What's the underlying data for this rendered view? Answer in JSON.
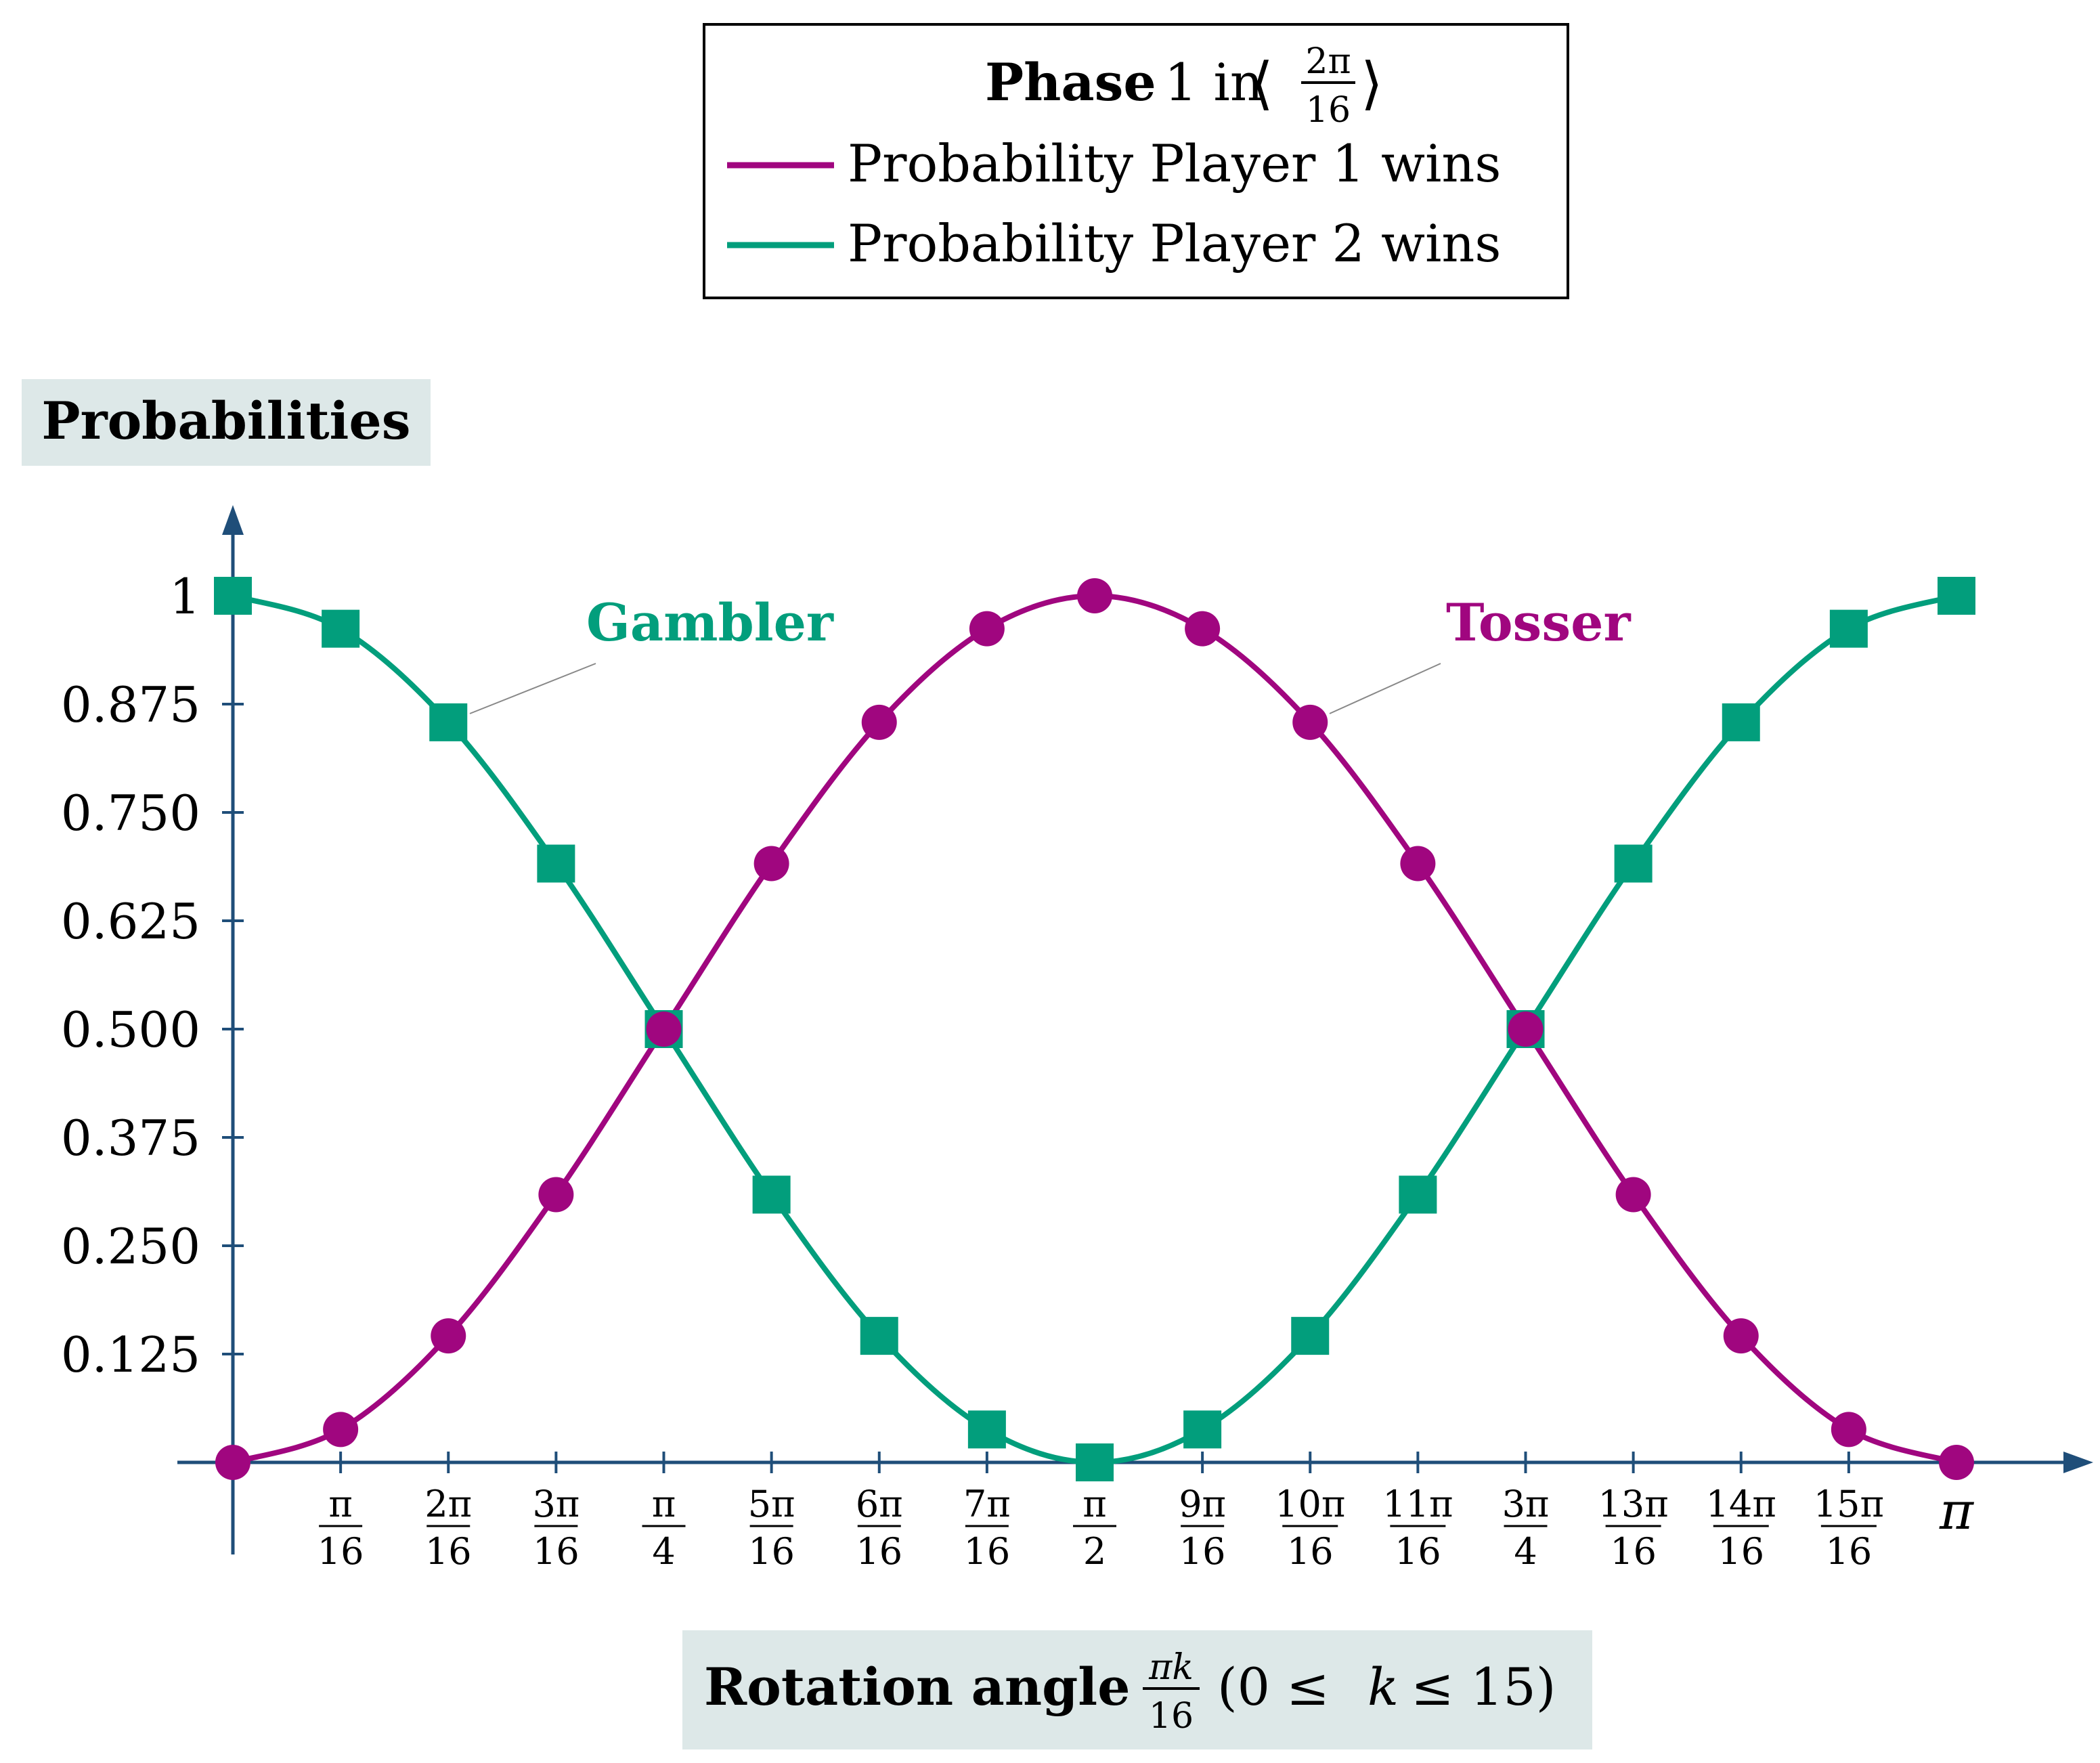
{
  "legend": {
    "title_bold": "Phase",
    "title_rest": "1 in",
    "title_frac_num": "2π",
    "title_frac_den": "16",
    "title_open": "⟨",
    "title_close": "⟩",
    "entries": [
      "Probability Player 1 wins",
      "Probability Player 2 wins"
    ]
  },
  "yaxis_label": "Probabilities",
  "xaxis_label": {
    "bold": "Rotation angle",
    "frac_num": "πk",
    "frac_den": "16",
    "range_open": "(0 ≤ ",
    "range_var": "k",
    "range_close": " ≤ 15)"
  },
  "annotations": {
    "gambler": "Gambler",
    "tosser": "Tosser"
  },
  "colors": {
    "series1": "#a0067f",
    "series2": "#029e7c",
    "axis": "#1f4e79",
    "label_bg": "#dde8e8"
  },
  "chart_data": {
    "type": "line",
    "x_ticks": [
      {
        "num": "π",
        "den": "16"
      },
      {
        "num": "2π",
        "den": "16"
      },
      {
        "num": "3π",
        "den": "16"
      },
      {
        "num": "π",
        "den": "4"
      },
      {
        "num": "5π",
        "den": "16"
      },
      {
        "num": "6π",
        "den": "16"
      },
      {
        "num": "7π",
        "den": "16"
      },
      {
        "num": "π",
        "den": "2"
      },
      {
        "num": "9π",
        "den": "16"
      },
      {
        "num": "10π",
        "den": "16"
      },
      {
        "num": "11π",
        "den": "16"
      },
      {
        "num": "3π",
        "den": "4"
      },
      {
        "num": "13π",
        "den": "16"
      },
      {
        "num": "14π",
        "den": "16"
      },
      {
        "num": "15π",
        "den": "16"
      },
      {
        "single": "π"
      }
    ],
    "y_ticks": [
      "1",
      "0.875",
      "0.750",
      "0.625",
      "0.500",
      "0.375",
      "0.250",
      "0.125"
    ],
    "y_tick_values": [
      1,
      0.875,
      0.75,
      0.625,
      0.5,
      0.375,
      0.25,
      0.125
    ],
    "x": [
      0,
      0.19635,
      0.3927,
      0.58905,
      0.7854,
      0.98175,
      1.1781,
      1.37445,
      1.5708,
      1.76715,
      1.9635,
      2.15985,
      2.35619,
      2.55254,
      2.74889,
      2.94524,
      3.14159
    ],
    "xlim": [
      0,
      3.14159
    ],
    "ylim": [
      0,
      1
    ],
    "series": [
      {
        "name": "Probability Player 1 wins",
        "marker": "circle",
        "values": [
          0,
          0.038,
          0.146,
          0.309,
          0.5,
          0.691,
          0.854,
          0.962,
          1,
          0.962,
          0.854,
          0.691,
          0.5,
          0.309,
          0.146,
          0.038,
          0
        ]
      },
      {
        "name": "Probability Player 2 wins",
        "marker": "square",
        "values": [
          1,
          0.962,
          0.854,
          0.691,
          0.5,
          0.309,
          0.146,
          0.038,
          0,
          0.038,
          0.146,
          0.309,
          0.5,
          0.691,
          0.854,
          0.962,
          1
        ]
      }
    ]
  }
}
